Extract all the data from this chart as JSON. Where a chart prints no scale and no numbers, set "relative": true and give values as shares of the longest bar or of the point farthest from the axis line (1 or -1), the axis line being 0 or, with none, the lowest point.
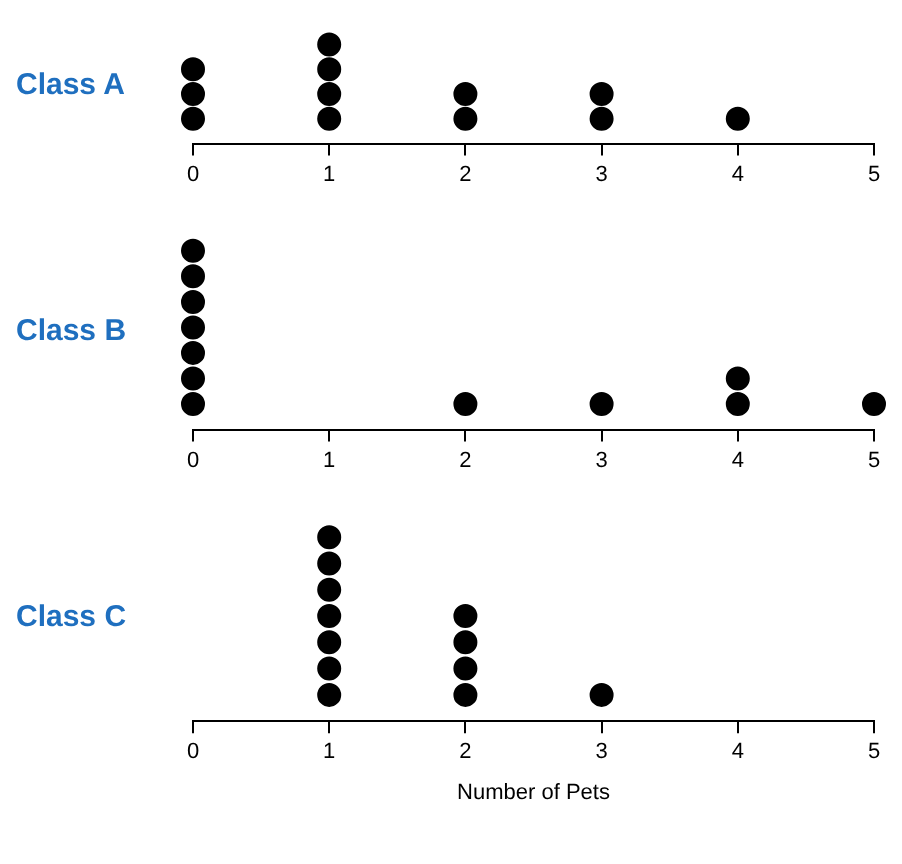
{
  "chart_data": [
    {
      "type": "scatter",
      "ylabel": "Class A",
      "relative": true,
      "series": [
        {
          "color": "#000000",
          "x": [
            0,
            0,
            0,
            1,
            1,
            1,
            1,
            2,
            2,
            3,
            3,
            4
          ],
          "values": [
            0.25,
            0.5,
            0.75,
            0.25,
            0.5,
            0.75,
            1,
            0.25,
            0.5,
            0.25,
            0.5,
            0.25
          ]
        }
      ],
      "xlim": [
        0,
        5
      ],
      "xticks": [
        0,
        1,
        2,
        3,
        4,
        5
      ],
      "tick_labels": "x",
      "legend": false,
      "marker": "circle"
    },
    {
      "type": "scatter",
      "ylabel": "Class B",
      "relative": true,
      "series": [
        {
          "color": "#000000",
          "x": [
            0,
            0,
            0,
            0,
            0,
            0,
            0,
            2,
            3,
            4,
            4,
            5
          ],
          "values": [
            0.143,
            0.286,
            0.429,
            0.571,
            0.714,
            0.857,
            1,
            0.143,
            0.143,
            0.143,
            0.286,
            0.143
          ]
        }
      ],
      "xlim": [
        0,
        5
      ],
      "xticks": [
        0,
        1,
        2,
        3,
        4,
        5
      ],
      "tick_labels": "x",
      "legend": false,
      "marker": "circle"
    },
    {
      "type": "scatter",
      "ylabel": "Class C",
      "xlabel": "Number of Pets",
      "relative": true,
      "series": [
        {
          "color": "#000000",
          "x": [
            1,
            1,
            1,
            1,
            1,
            1,
            1,
            2,
            2,
            2,
            2,
            3
          ],
          "values": [
            0.143,
            0.286,
            0.429,
            0.571,
            0.714,
            0.857,
            1,
            0.143,
            0.286,
            0.429,
            0.571,
            0.143
          ]
        }
      ],
      "xlim": [
        0,
        5
      ],
      "xticks": [
        0,
        1,
        2,
        3,
        4,
        5
      ],
      "tick_labels": "x",
      "legend": false,
      "marker": "circle"
    }
  ]
}
